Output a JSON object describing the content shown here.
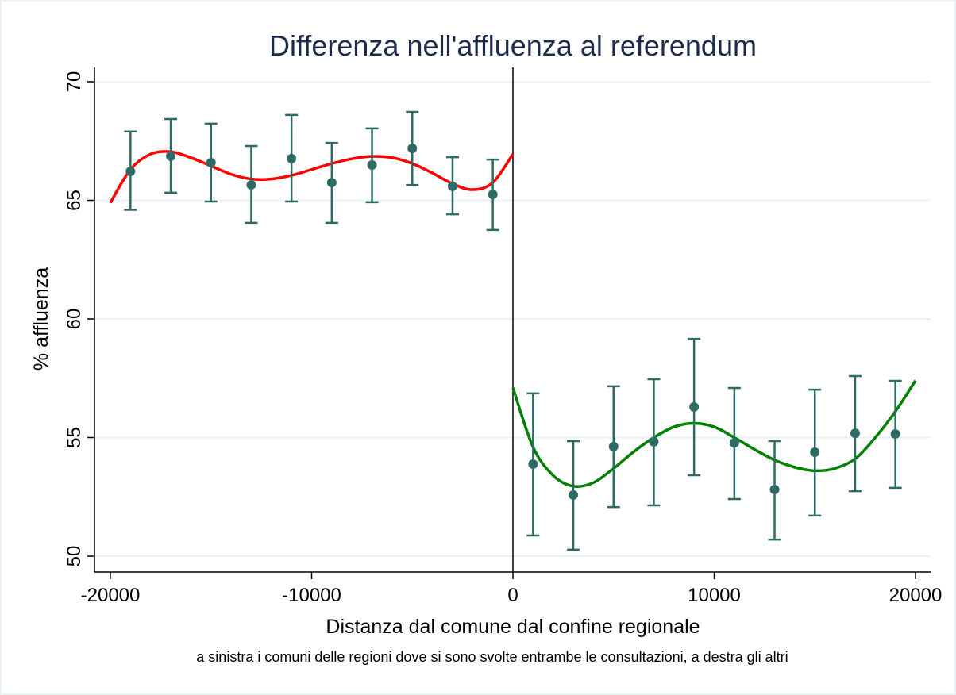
{
  "chart_data": {
    "type": "scatter",
    "title": "Differenza nell'affluenza al referendum",
    "xlabel": "Distanza dal comune dal confine regionale",
    "ylabel": "% affluenza",
    "note": "a sinistra i comuni delle regioni dove si sono svolte entrambe le consultazioni, a destra gli altri",
    "xlim": [
      -20000,
      20000
    ],
    "ylim": [
      50,
      70
    ],
    "xticks": [
      -20000,
      -10000,
      0,
      10000,
      20000
    ],
    "xtick_labels": [
      "-20000",
      "-10000",
      "0",
      "10000",
      "20000"
    ],
    "yticks": [
      50,
      55,
      60,
      65,
      70
    ],
    "ytick_labels": [
      "50",
      "55",
      "60",
      "65",
      "70"
    ],
    "grid": true,
    "cutoff": 0,
    "colors": {
      "points": "#2e6b64",
      "left_fit": "#ff0000",
      "right_fit": "#008000",
      "grid": "#eaf2f3",
      "title": "#1c2b4b"
    },
    "points": [
      {
        "x": -19000,
        "y": 66.22,
        "lo": 64.6,
        "hi": 67.9
      },
      {
        "x": -17000,
        "y": 66.86,
        "lo": 65.32,
        "hi": 68.43
      },
      {
        "x": -15000,
        "y": 66.59,
        "lo": 64.95,
        "hi": 68.23
      },
      {
        "x": -13000,
        "y": 65.65,
        "lo": 64.05,
        "hi": 67.29
      },
      {
        "x": -11000,
        "y": 66.76,
        "lo": 64.95,
        "hi": 68.6
      },
      {
        "x": -9000,
        "y": 65.75,
        "lo": 64.05,
        "hi": 67.42
      },
      {
        "x": -7000,
        "y": 66.49,
        "lo": 64.92,
        "hi": 68.03
      },
      {
        "x": -5000,
        "y": 67.19,
        "lo": 65.65,
        "hi": 68.73
      },
      {
        "x": -3000,
        "y": 65.59,
        "lo": 64.41,
        "hi": 66.82
      },
      {
        "x": -1000,
        "y": 65.25,
        "lo": 63.75,
        "hi": 66.72
      },
      {
        "x": 1000,
        "y": 53.88,
        "lo": 50.87,
        "hi": 56.86
      },
      {
        "x": 3000,
        "y": 52.58,
        "lo": 50.27,
        "hi": 54.85
      },
      {
        "x": 5000,
        "y": 54.62,
        "lo": 52.07,
        "hi": 57.16
      },
      {
        "x": 7000,
        "y": 54.82,
        "lo": 52.14,
        "hi": 57.46
      },
      {
        "x": 9000,
        "y": 56.29,
        "lo": 53.41,
        "hi": 59.16
      },
      {
        "x": 11000,
        "y": 54.78,
        "lo": 52.41,
        "hi": 57.09
      },
      {
        "x": 13000,
        "y": 52.81,
        "lo": 50.7,
        "hi": 54.85
      },
      {
        "x": 15000,
        "y": 54.38,
        "lo": 51.71,
        "hi": 57.02
      },
      {
        "x": 17000,
        "y": 55.18,
        "lo": 52.74,
        "hi": 57.59
      },
      {
        "x": 19000,
        "y": 55.15,
        "lo": 52.88,
        "hi": 57.39
      }
    ],
    "left_fit": {
      "x": [
        -20000,
        -19000,
        -18000,
        -17000,
        -16000,
        -15000,
        -14000,
        -13000,
        -12000,
        -11000,
        -10000,
        -9000,
        -8000,
        -7000,
        -6000,
        -5000,
        -4000,
        -3000,
        -2000,
        -1000,
        0
      ],
      "y": [
        64.9,
        66.3,
        66.95,
        67.05,
        66.8,
        66.45,
        66.1,
        65.9,
        65.9,
        66.05,
        66.3,
        66.55,
        66.75,
        66.85,
        66.8,
        66.55,
        66.15,
        65.7,
        65.45,
        65.75,
        66.95
      ]
    },
    "right_fit": {
      "x": [
        0,
        1000,
        2000,
        3000,
        4000,
        5000,
        6000,
        7000,
        8000,
        9000,
        10000,
        11000,
        12000,
        13000,
        14000,
        15000,
        16000,
        17000,
        18000,
        19000,
        20000
      ],
      "y": [
        57.1,
        54.6,
        53.4,
        52.95,
        53.1,
        53.7,
        54.4,
        55.0,
        55.45,
        55.6,
        55.45,
        55.0,
        54.5,
        54.05,
        53.75,
        53.6,
        53.7,
        54.1,
        55.0,
        56.1,
        57.4
      ]
    }
  }
}
